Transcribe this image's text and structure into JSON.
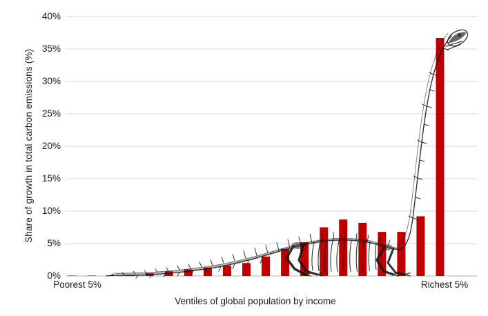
{
  "chart_data": {
    "type": "bar",
    "title": "",
    "xlabel": "Ventiles of global population by income",
    "ylabel": "Share of growth in total carbon emissions (%)",
    "x_tick_labels_visible": [
      "Poorest 5%",
      "Richest 5%"
    ],
    "categories": [
      "1",
      "2",
      "3",
      "4",
      "5",
      "6",
      "7",
      "8",
      "9",
      "10",
      "11",
      "12",
      "13",
      "14",
      "15",
      "16",
      "17",
      "18",
      "19",
      "20"
    ],
    "values": [
      0.05,
      0.05,
      0.1,
      0.15,
      0.4,
      0.7,
      1.0,
      1.3,
      1.6,
      2.0,
      3.0,
      4.2,
      5.2,
      7.5,
      8.7,
      8.2,
      6.8,
      6.8,
      9.2,
      36.7
    ],
    "ylim": [
      0,
      40
    ],
    "ytick_step": 5,
    "yticks": [
      "0%",
      "5%",
      "10%",
      "15%",
      "20%",
      "25%",
      "30%",
      "35%",
      "40%"
    ],
    "grid": "horizontal",
    "legend": "none",
    "bar_color": "#C00000",
    "gridline_color": "#D9D9D9",
    "axis_line_color": "#BFBFBF",
    "text_color": "#1a1a1a",
    "annotation": "sketched dinosaur skeleton line-art overlay whose silhouette follows the bar heights (long tail over the low ventiles, body over the middle hump, neck rising along the tallest richest-5% bar)"
  }
}
